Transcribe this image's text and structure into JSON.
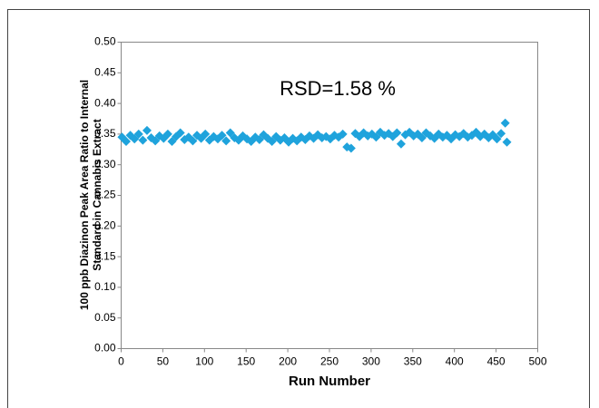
{
  "chart_data": {
    "type": "scatter",
    "annotation": "RSD=1.58 %",
    "x_label": "Run Number",
    "y_label": [
      "100 ppb Diazinon Peak Area Ratio to Internal",
      "Standard in Cannabis Extract"
    ],
    "color": "#1fa3dc",
    "marker": "diamond",
    "xlim": [
      0,
      500
    ],
    "xticks": [
      0,
      50,
      100,
      150,
      200,
      250,
      300,
      350,
      400,
      450,
      500
    ],
    "ylim": [
      0,
      0.5
    ],
    "yticks": [
      {
        "value": 0,
        "label": "0.00"
      },
      {
        "value": 0.05,
        "label": "0.05"
      },
      {
        "value": 0.1,
        "label": "0.10"
      },
      {
        "value": 0.15,
        "label": "0.15"
      },
      {
        "value": 0.2,
        "label": "0.20"
      },
      {
        "value": 0.25,
        "label": "0.25"
      },
      {
        "value": 0.3,
        "label": "0.30"
      },
      {
        "value": 0.35,
        "label": "0.35"
      },
      {
        "value": 0.4,
        "label": "0.40"
      },
      {
        "value": 0.45,
        "label": "0.45"
      },
      {
        "value": 0.5,
        "label": "0.50"
      }
    ],
    "x": [
      1,
      6,
      11,
      16,
      21,
      26,
      31,
      36,
      41,
      46,
      51,
      56,
      61,
      66,
      71,
      76,
      81,
      86,
      91,
      96,
      101,
      106,
      111,
      116,
      121,
      126,
      131,
      136,
      141,
      146,
      151,
      156,
      161,
      166,
      171,
      176,
      181,
      186,
      191,
      196,
      201,
      206,
      211,
      216,
      221,
      226,
      231,
      236,
      241,
      246,
      251,
      256,
      261,
      266,
      271,
      276,
      281,
      286,
      291,
      296,
      301,
      306,
      311,
      316,
      321,
      326,
      331,
      336,
      341,
      346,
      351,
      356,
      361,
      366,
      371,
      376,
      381,
      386,
      391,
      396,
      401,
      406,
      411,
      416,
      421,
      426,
      431,
      436,
      441,
      446,
      451,
      456,
      461,
      463
    ],
    "values": [
      0.345,
      0.338,
      0.348,
      0.342,
      0.35,
      0.34,
      0.356,
      0.344,
      0.339,
      0.347,
      0.343,
      0.35,
      0.338,
      0.346,
      0.352,
      0.341,
      0.345,
      0.339,
      0.348,
      0.343,
      0.35,
      0.34,
      0.346,
      0.342,
      0.348,
      0.339,
      0.352,
      0.344,
      0.34,
      0.347,
      0.342,
      0.338,
      0.345,
      0.341,
      0.349,
      0.343,
      0.338,
      0.346,
      0.34,
      0.344,
      0.337,
      0.343,
      0.339,
      0.345,
      0.341,
      0.347,
      0.343,
      0.349,
      0.344,
      0.346,
      0.342,
      0.348,
      0.345,
      0.35,
      0.329,
      0.327,
      0.351,
      0.346,
      0.352,
      0.347,
      0.35,
      0.345,
      0.353,
      0.348,
      0.351,
      0.346,
      0.352,
      0.334,
      0.349,
      0.353,
      0.347,
      0.35,
      0.344,
      0.352,
      0.347,
      0.343,
      0.35,
      0.345,
      0.348,
      0.342,
      0.349,
      0.346,
      0.351,
      0.345,
      0.348,
      0.353,
      0.346,
      0.35,
      0.344,
      0.349,
      0.342,
      0.351,
      0.368,
      0.337
    ]
  }
}
